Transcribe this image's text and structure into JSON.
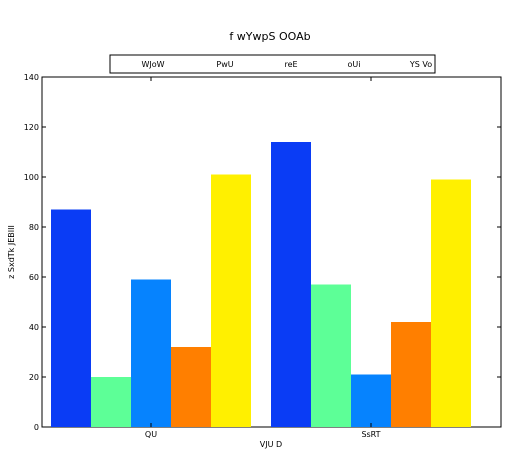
{
  "chart_data": {
    "type": "bar",
    "title": "f wYwpS OOAb",
    "xlabel": "VJU D",
    "ylabel": "z SxdTk JEBIII",
    "categories": [
      "QU",
      "SsRT"
    ],
    "ylim": [
      0,
      140
    ],
    "yticks": [
      0,
      20,
      40,
      60,
      80,
      100,
      120,
      140
    ],
    "grid": false,
    "legend_position": "top-center",
    "series": [
      {
        "name": "WJoW",
        "color": "#0a3cf5",
        "values": [
          87,
          114
        ]
      },
      {
        "name": "PwU",
        "color": "#5dff97",
        "values": [
          20,
          57
        ]
      },
      {
        "name": "reE",
        "color": "#0683fe",
        "values": [
          59,
          21
        ]
      },
      {
        "name": "oUi",
        "color": "#ff7f00",
        "values": [
          32,
          42
        ]
      },
      {
        "name": "YS Vo",
        "color": "#fff000",
        "values": [
          101,
          99
        ]
      }
    ]
  }
}
